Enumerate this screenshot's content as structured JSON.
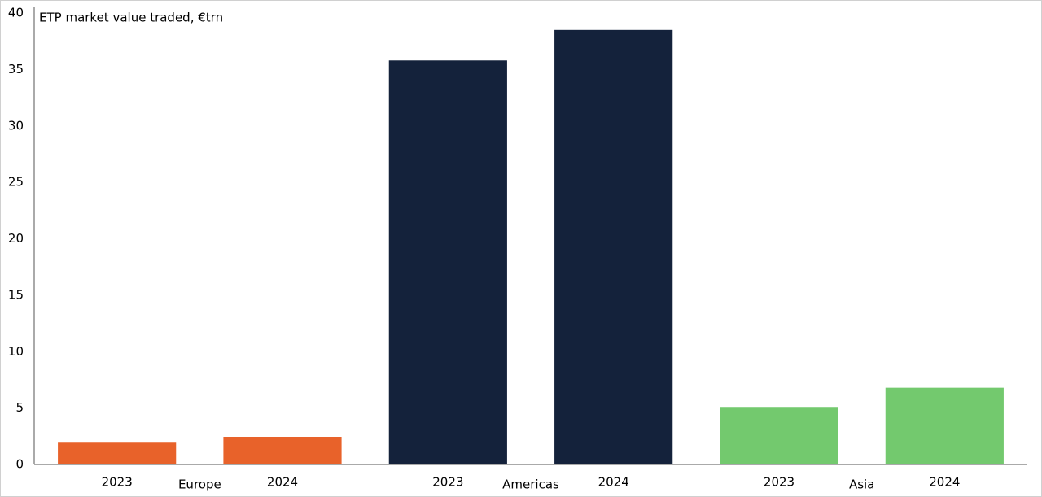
{
  "chart_data": {
    "type": "bar",
    "title": "ETP market value traded, €trn",
    "groups": [
      {
        "name": "Europe",
        "color": "#e8622a",
        "categories": [
          "2023",
          "2024"
        ],
        "values": [
          2.0,
          2.45
        ]
      },
      {
        "name": "Americas",
        "color": "#14223b",
        "categories": [
          "2023",
          "2024"
        ],
        "values": [
          35.8,
          38.5
        ]
      },
      {
        "name": "Asia",
        "color": "#73c96e",
        "categories": [
          "2023",
          "2024"
        ],
        "values": [
          5.1,
          6.8
        ]
      }
    ],
    "ylim": [
      0,
      40
    ],
    "yticks": [
      0,
      5,
      10,
      15,
      20,
      25,
      30,
      35,
      40
    ],
    "grid": false
  }
}
